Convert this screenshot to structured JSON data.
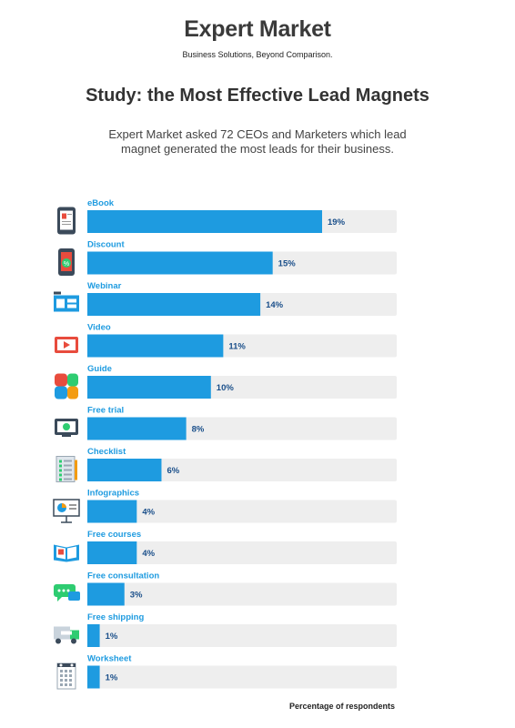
{
  "header": {
    "brand_name": "Expert Market",
    "tagline": "Business Solutions, Beyond Comparison."
  },
  "title": "Study: the Most Effective Lead Magnets",
  "subtitle": "Expert Market asked 72 CEOs and Marketers which lead magnet generated the most leads for their business.",
  "footnote": "Percentage of respondents",
  "colors": {
    "bar": "#1e9be0",
    "track": "#eeeeee",
    "label": "#1e9be0",
    "value_text": "#1a4f8a"
  },
  "chart_data": {
    "type": "bar",
    "orientation": "horizontal",
    "categories": [
      "eBook",
      "Discount",
      "Webinar",
      "Video",
      "Guide",
      "Free trial",
      "Checklist",
      "Infographics",
      "Free courses",
      "Free consultation",
      "Free shipping",
      "Worksheet"
    ],
    "values": [
      19,
      15,
      14,
      11,
      10,
      8,
      6,
      4,
      4,
      3,
      1,
      1
    ],
    "value_labels": [
      "19%",
      "15%",
      "14%",
      "11%",
      "10%",
      "8%",
      "6%",
      "4%",
      "4%",
      "3%",
      "1%",
      "1%"
    ],
    "icons": [
      "ebook-icon",
      "discount-icon",
      "webinar-icon",
      "video-icon",
      "guide-icon",
      "free-trial-icon",
      "checklist-icon",
      "infographics-icon",
      "free-courses-icon",
      "free-consultation-icon",
      "free-shipping-icon",
      "worksheet-icon"
    ],
    "xlabel": "Percentage of respondents",
    "ylabel": "",
    "xlim": [
      0,
      25
    ],
    "grid": false,
    "legend": "none"
  }
}
